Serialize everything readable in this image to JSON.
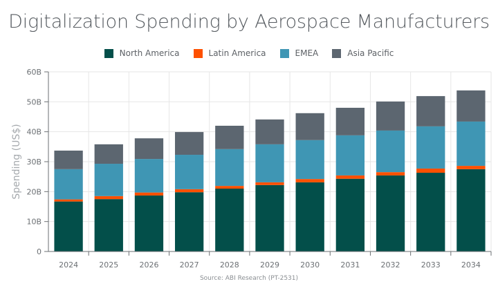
{
  "chart_data": {
    "type": "bar",
    "stacked": true,
    "title": "Digitalization Spending by Aerospace Manufacturers",
    "xlabel": "",
    "ylabel": "Spending (US$)",
    "source": "Source: ABI Research (PT-2531)",
    "ylim": [
      0,
      60
    ],
    "y_unit_suffix": "B",
    "yticks": [
      0,
      10,
      20,
      30,
      40,
      50,
      60
    ],
    "ytick_labels": [
      "0",
      "10B",
      "20B",
      "30B",
      "40B",
      "50B",
      "60B"
    ],
    "grid": true,
    "legend_position": "top-center",
    "categories": [
      "2024",
      "2025",
      "2026",
      "2027",
      "2028",
      "2029",
      "2030",
      "2031",
      "2032",
      "2033",
      "2034"
    ],
    "series": [
      {
        "name": "North America",
        "color": "#034f4a",
        "values": [
          16.7,
          17.5,
          18.7,
          19.8,
          21.0,
          22.2,
          23.1,
          24.3,
          25.4,
          26.3,
          27.5
        ]
      },
      {
        "name": "Latin America",
        "color": "#fe5000",
        "values": [
          0.7,
          1.0,
          1.0,
          1.0,
          0.9,
          0.9,
          1.1,
          1.1,
          1.1,
          1.4,
          1.1
        ]
      },
      {
        "name": "EMEA",
        "color": "#3f96b4",
        "values": [
          10.1,
          10.8,
          11.2,
          11.5,
          12.3,
          12.7,
          13.0,
          13.4,
          13.9,
          14.1,
          14.8
        ]
      },
      {
        "name": "Asia Pacific",
        "color": "#5c6670",
        "values": [
          6.2,
          6.5,
          6.9,
          7.6,
          7.8,
          8.3,
          9.0,
          9.2,
          9.7,
          10.1,
          10.4
        ]
      }
    ]
  }
}
